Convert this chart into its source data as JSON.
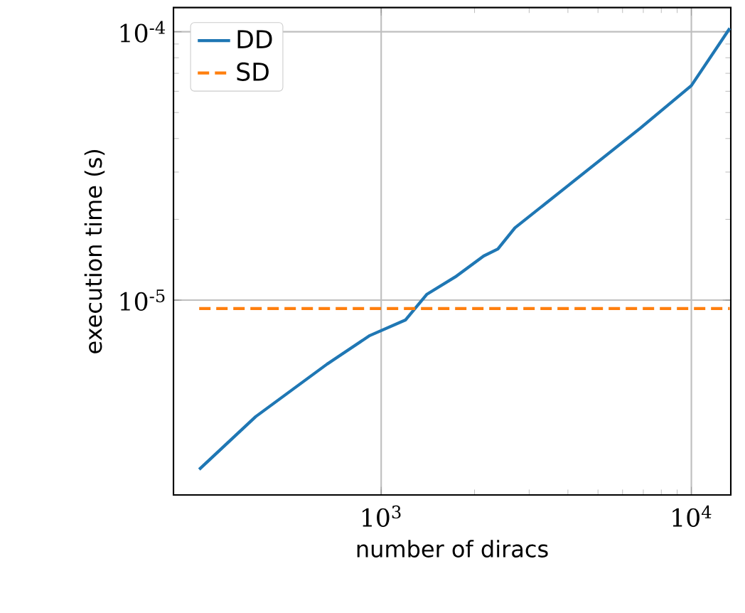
{
  "chart_data": {
    "type": "line",
    "xlabel": "number of diracs",
    "ylabel": "execution time (s)",
    "log": "xy",
    "grid": true,
    "legend": "top left",
    "xlim": [
      214,
      13400
    ],
    "ylim": [
      1.88e-06,
      0.000123
    ],
    "xticks": [
      {
        "value": 1000,
        "label": "10$^{3}$"
      },
      {
        "value": 10000,
        "label": "10$^{4}$"
      }
    ],
    "yticks": [
      {
        "value": 1e-05,
        "label": "10$^{-5}$"
      },
      {
        "value": 0.0001,
        "label": "10$^{-4}$"
      }
    ],
    "series": [
      {
        "name": "DD",
        "color": "#1f77b4",
        "line_style": "solid",
        "x": [
          259,
          394,
          670,
          919,
          1197,
          1402,
          1733,
          2140,
          2378,
          2699,
          4035,
          6840,
          10000,
          13300
        ],
        "values": [
          2.34e-06,
          3.68e-06,
          5.78e-06,
          7.38e-06,
          8.43e-06,
          1.05e-05,
          1.22e-05,
          1.46e-05,
          1.55e-05,
          1.86e-05,
          2.69e-05,
          4.37e-05,
          6.3e-05,
          0.000103
        ]
      },
      {
        "name": "SD",
        "color": "#ff7f0e",
        "line_style": "dashed",
        "x": [
          259,
          13300
        ],
        "values": [
          9.3e-06,
          9.3e-06
        ]
      }
    ]
  }
}
